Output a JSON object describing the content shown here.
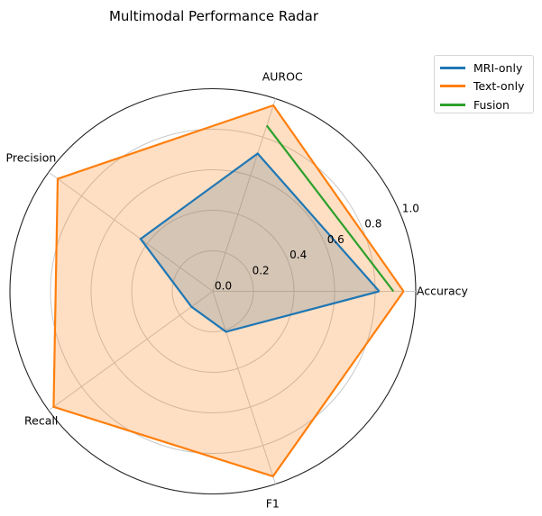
{
  "chart_data": {
    "type": "radar",
    "title": "Multimodal Performance Radar",
    "categories": [
      "Accuracy",
      "AUROC",
      "Precision",
      "Recall",
      "F1"
    ],
    "radial_ticks": [
      "0.0",
      "0.2",
      "0.4",
      "0.6",
      "0.8",
      "1.0"
    ],
    "rlim": [
      0,
      1.0
    ],
    "grid": true,
    "legend_position": "upper right (outside)",
    "series": [
      {
        "name": "MRI-only",
        "color": "#1f77b4",
        "values": [
          0.82,
          0.715,
          0.44,
          0.13,
          0.21
        ],
        "fill": true
      },
      {
        "name": "Text-only",
        "color": "#ff7f0e",
        "values": [
          0.94,
          0.965,
          0.945,
          0.97,
          0.96
        ],
        "fill": true
      },
      {
        "name": "Fusion",
        "color": "#2ca02c",
        "values": [
          0.89,
          0.86,
          null,
          null,
          null
        ],
        "fill": false
      }
    ]
  },
  "legend": {
    "items": [
      {
        "label": "MRI-only",
        "color": "#1f77b4"
      },
      {
        "label": "Text-only",
        "color": "#ff7f0e"
      },
      {
        "label": "Fusion",
        "color": "#2ca02c"
      }
    ]
  }
}
